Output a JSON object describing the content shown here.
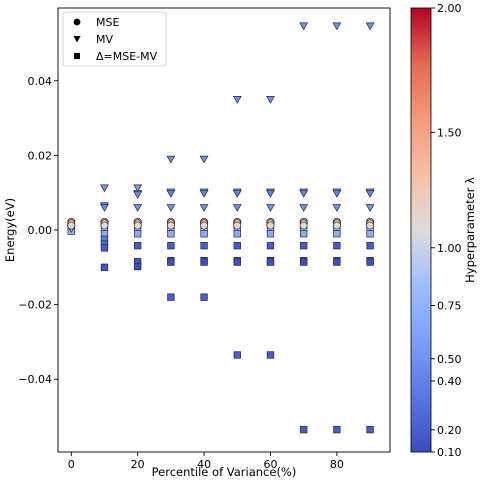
{
  "chart_data": {
    "type": "scatter",
    "xlabel": "Percentile of Variance(%)",
    "ylabel": "Energy(eV)",
    "xlim": [
      -4,
      96
    ],
    "ylim": [
      -0.0595,
      0.0595
    ],
    "xticks": [
      0,
      20,
      40,
      60,
      80
    ],
    "yticks": [
      -0.04,
      -0.02,
      0.0,
      0.02,
      0.04
    ],
    "xtick_labels": [
      "0",
      "20",
      "40",
      "60",
      "80"
    ],
    "ytick_labels": [
      "−0.04",
      "−0.02",
      "0.00",
      "0.02",
      "0.04"
    ],
    "grid": false,
    "legend_position": "top-left",
    "legend": [
      {
        "marker": "circle",
        "label": "MSE"
      },
      {
        "marker": "triangle-down",
        "label": "MV"
      },
      {
        "marker": "square",
        "label": "Δ=MSE-MV"
      }
    ],
    "colormap": "coolwarm",
    "colorbar": {
      "label": "Hyperparameter λ",
      "range": [
        0.1,
        2.0
      ],
      "ticks": [
        0.1,
        0.2,
        0.4,
        0.5,
        0.75,
        1.0,
        1.5,
        2.0
      ],
      "tick_labels": [
        "0.10",
        "0.20",
        "0.40",
        "0.50",
        "0.75",
        "1.00",
        "1.50",
        "2.00"
      ]
    },
    "series": [
      {
        "name": "MSE",
        "marker": "circle",
        "points": [
          {
            "x": 0,
            "y": 0.0022,
            "lambda": 1.5
          },
          {
            "x": 0,
            "y": 0.0018,
            "lambda": 1.3
          },
          {
            "x": 0,
            "y": 0.0012,
            "lambda": 1.1
          },
          {
            "x": 10,
            "y": 0.0022,
            "lambda": 1.5
          },
          {
            "x": 10,
            "y": 0.0018,
            "lambda": 1.3
          },
          {
            "x": 10,
            "y": 0.0012,
            "lambda": 1.1
          },
          {
            "x": 20,
            "y": 0.0022,
            "lambda": 1.5
          },
          {
            "x": 20,
            "y": 0.0018,
            "lambda": 1.3
          },
          {
            "x": 20,
            "y": 0.0012,
            "lambda": 1.1
          },
          {
            "x": 30,
            "y": 0.0022,
            "lambda": 1.5
          },
          {
            "x": 30,
            "y": 0.0018,
            "lambda": 1.3
          },
          {
            "x": 30,
            "y": 0.0012,
            "lambda": 1.1
          },
          {
            "x": 40,
            "y": 0.0022,
            "lambda": 1.5
          },
          {
            "x": 40,
            "y": 0.0018,
            "lambda": 1.3
          },
          {
            "x": 40,
            "y": 0.0012,
            "lambda": 1.1
          },
          {
            "x": 50,
            "y": 0.0022,
            "lambda": 1.5
          },
          {
            "x": 50,
            "y": 0.0018,
            "lambda": 1.3
          },
          {
            "x": 50,
            "y": 0.0012,
            "lambda": 1.1
          },
          {
            "x": 60,
            "y": 0.0022,
            "lambda": 1.5
          },
          {
            "x": 60,
            "y": 0.0018,
            "lambda": 1.3
          },
          {
            "x": 60,
            "y": 0.0012,
            "lambda": 1.1
          },
          {
            "x": 70,
            "y": 0.0022,
            "lambda": 1.5
          },
          {
            "x": 70,
            "y": 0.0018,
            "lambda": 1.3
          },
          {
            "x": 70,
            "y": 0.0012,
            "lambda": 1.1
          },
          {
            "x": 80,
            "y": 0.0022,
            "lambda": 1.5
          },
          {
            "x": 80,
            "y": 0.0018,
            "lambda": 1.3
          },
          {
            "x": 80,
            "y": 0.0012,
            "lambda": 1.1
          },
          {
            "x": 90,
            "y": 0.0022,
            "lambda": 1.5
          },
          {
            "x": 90,
            "y": 0.0018,
            "lambda": 1.3
          },
          {
            "x": 90,
            "y": 0.0012,
            "lambda": 1.1
          }
        ]
      },
      {
        "name": "MV",
        "marker": "triangle-down",
        "points": [
          {
            "x": 0,
            "y": 0.0005,
            "lambda": 0.95
          },
          {
            "x": 0,
            "y": 0.0003,
            "lambda": 0.8
          },
          {
            "x": 10,
            "y": 0.0113,
            "lambda": 0.55
          },
          {
            "x": 10,
            "y": 0.0065,
            "lambda": 0.5
          },
          {
            "x": 10,
            "y": 0.006,
            "lambda": 0.45
          },
          {
            "x": 10,
            "y": 0.0015,
            "lambda": 0.9
          },
          {
            "x": 20,
            "y": 0.0113,
            "lambda": 0.55
          },
          {
            "x": 20,
            "y": 0.0098,
            "lambda": 0.5
          },
          {
            "x": 20,
            "y": 0.0095,
            "lambda": 0.45
          },
          {
            "x": 20,
            "y": 0.006,
            "lambda": 0.5
          },
          {
            "x": 20,
            "y": 0.0012,
            "lambda": 0.9
          },
          {
            "x": 30,
            "y": 0.019,
            "lambda": 0.5
          },
          {
            "x": 30,
            "y": 0.0102,
            "lambda": 0.45
          },
          {
            "x": 30,
            "y": 0.0098,
            "lambda": 0.4
          },
          {
            "x": 30,
            "y": 0.006,
            "lambda": 0.5
          },
          {
            "x": 30,
            "y": 0.0012,
            "lambda": 0.9
          },
          {
            "x": 40,
            "y": 0.019,
            "lambda": 0.5
          },
          {
            "x": 40,
            "y": 0.0102,
            "lambda": 0.45
          },
          {
            "x": 40,
            "y": 0.0098,
            "lambda": 0.4
          },
          {
            "x": 40,
            "y": 0.006,
            "lambda": 0.5
          },
          {
            "x": 40,
            "y": 0.0012,
            "lambda": 0.9
          },
          {
            "x": 50,
            "y": 0.035,
            "lambda": 0.5
          },
          {
            "x": 50,
            "y": 0.0102,
            "lambda": 0.45
          },
          {
            "x": 50,
            "y": 0.0098,
            "lambda": 0.4
          },
          {
            "x": 50,
            "y": 0.006,
            "lambda": 0.5
          },
          {
            "x": 50,
            "y": 0.0012,
            "lambda": 0.9
          },
          {
            "x": 60,
            "y": 0.035,
            "lambda": 0.5
          },
          {
            "x": 60,
            "y": 0.0102,
            "lambda": 0.45
          },
          {
            "x": 60,
            "y": 0.0098,
            "lambda": 0.4
          },
          {
            "x": 60,
            "y": 0.006,
            "lambda": 0.5
          },
          {
            "x": 60,
            "y": 0.0012,
            "lambda": 0.9
          },
          {
            "x": 70,
            "y": 0.0547,
            "lambda": 0.5
          },
          {
            "x": 70,
            "y": 0.0102,
            "lambda": 0.45
          },
          {
            "x": 70,
            "y": 0.0098,
            "lambda": 0.4
          },
          {
            "x": 70,
            "y": 0.006,
            "lambda": 0.5
          },
          {
            "x": 70,
            "y": 0.0012,
            "lambda": 0.9
          },
          {
            "x": 80,
            "y": 0.0547,
            "lambda": 0.5
          },
          {
            "x": 80,
            "y": 0.0102,
            "lambda": 0.45
          },
          {
            "x": 80,
            "y": 0.0098,
            "lambda": 0.4
          },
          {
            "x": 80,
            "y": 0.006,
            "lambda": 0.5
          },
          {
            "x": 80,
            "y": 0.0012,
            "lambda": 0.9
          },
          {
            "x": 90,
            "y": 0.0547,
            "lambda": 0.5
          },
          {
            "x": 90,
            "y": 0.0102,
            "lambda": 0.45
          },
          {
            "x": 90,
            "y": 0.0098,
            "lambda": 0.4
          },
          {
            "x": 90,
            "y": 0.006,
            "lambda": 0.5
          },
          {
            "x": 90,
            "y": 0.0012,
            "lambda": 0.9
          }
        ]
      },
      {
        "name": "Δ=MSE-MV",
        "marker": "square",
        "points": [
          {
            "x": 0,
            "y": 0.0002,
            "lambda": 1.0
          },
          {
            "x": 0,
            "y": -0.0003,
            "lambda": 0.8
          },
          {
            "x": 10,
            "y": 0.0005,
            "lambda": 0.95
          },
          {
            "x": 10,
            "y": -0.001,
            "lambda": 0.7
          },
          {
            "x": 10,
            "y": -0.0025,
            "lambda": 0.35
          },
          {
            "x": 10,
            "y": -0.0038,
            "lambda": 0.25
          },
          {
            "x": 10,
            "y": -0.0048,
            "lambda": 0.2
          },
          {
            "x": 10,
            "y": -0.01,
            "lambda": 0.15
          },
          {
            "x": 20,
            "y": 0.0005,
            "lambda": 0.95
          },
          {
            "x": 20,
            "y": -0.001,
            "lambda": 0.7
          },
          {
            "x": 20,
            "y": -0.0042,
            "lambda": 0.2
          },
          {
            "x": 20,
            "y": -0.0085,
            "lambda": 0.15
          },
          {
            "x": 20,
            "y": -0.0098,
            "lambda": 0.12
          },
          {
            "x": 30,
            "y": 0.0005,
            "lambda": 0.95
          },
          {
            "x": 30,
            "y": -0.001,
            "lambda": 0.7
          },
          {
            "x": 30,
            "y": -0.0042,
            "lambda": 0.2
          },
          {
            "x": 30,
            "y": -0.0082,
            "lambda": 0.15
          },
          {
            "x": 30,
            "y": -0.0086,
            "lambda": 0.12
          },
          {
            "x": 30,
            "y": -0.018,
            "lambda": 0.2
          },
          {
            "x": 40,
            "y": 0.0005,
            "lambda": 0.95
          },
          {
            "x": 40,
            "y": -0.001,
            "lambda": 0.7
          },
          {
            "x": 40,
            "y": -0.0042,
            "lambda": 0.2
          },
          {
            "x": 40,
            "y": -0.0082,
            "lambda": 0.15
          },
          {
            "x": 40,
            "y": -0.0086,
            "lambda": 0.12
          },
          {
            "x": 40,
            "y": -0.018,
            "lambda": 0.2
          },
          {
            "x": 50,
            "y": 0.0005,
            "lambda": 0.95
          },
          {
            "x": 50,
            "y": -0.001,
            "lambda": 0.7
          },
          {
            "x": 50,
            "y": -0.0042,
            "lambda": 0.2
          },
          {
            "x": 50,
            "y": -0.0082,
            "lambda": 0.15
          },
          {
            "x": 50,
            "y": -0.0086,
            "lambda": 0.12
          },
          {
            "x": 50,
            "y": -0.0335,
            "lambda": 0.2
          },
          {
            "x": 60,
            "y": 0.0005,
            "lambda": 0.95
          },
          {
            "x": 60,
            "y": -0.001,
            "lambda": 0.7
          },
          {
            "x": 60,
            "y": -0.0042,
            "lambda": 0.2
          },
          {
            "x": 60,
            "y": -0.0082,
            "lambda": 0.15
          },
          {
            "x": 60,
            "y": -0.0086,
            "lambda": 0.12
          },
          {
            "x": 60,
            "y": -0.0335,
            "lambda": 0.2
          },
          {
            "x": 70,
            "y": 0.0005,
            "lambda": 0.95
          },
          {
            "x": 70,
            "y": -0.001,
            "lambda": 0.7
          },
          {
            "x": 70,
            "y": -0.0042,
            "lambda": 0.2
          },
          {
            "x": 70,
            "y": -0.0082,
            "lambda": 0.15
          },
          {
            "x": 70,
            "y": -0.0086,
            "lambda": 0.12
          },
          {
            "x": 70,
            "y": -0.0535,
            "lambda": 0.2
          },
          {
            "x": 80,
            "y": 0.0005,
            "lambda": 0.95
          },
          {
            "x": 80,
            "y": -0.001,
            "lambda": 0.7
          },
          {
            "x": 80,
            "y": -0.0042,
            "lambda": 0.2
          },
          {
            "x": 80,
            "y": -0.0082,
            "lambda": 0.15
          },
          {
            "x": 80,
            "y": -0.0086,
            "lambda": 0.12
          },
          {
            "x": 80,
            "y": -0.0535,
            "lambda": 0.2
          },
          {
            "x": 90,
            "y": 0.0005,
            "lambda": 0.95
          },
          {
            "x": 90,
            "y": -0.001,
            "lambda": 0.7
          },
          {
            "x": 90,
            "y": -0.0042,
            "lambda": 0.2
          },
          {
            "x": 90,
            "y": -0.0082,
            "lambda": 0.15
          },
          {
            "x": 90,
            "y": -0.0086,
            "lambda": 0.12
          },
          {
            "x": 90,
            "y": -0.0535,
            "lambda": 0.2
          }
        ]
      }
    ]
  }
}
